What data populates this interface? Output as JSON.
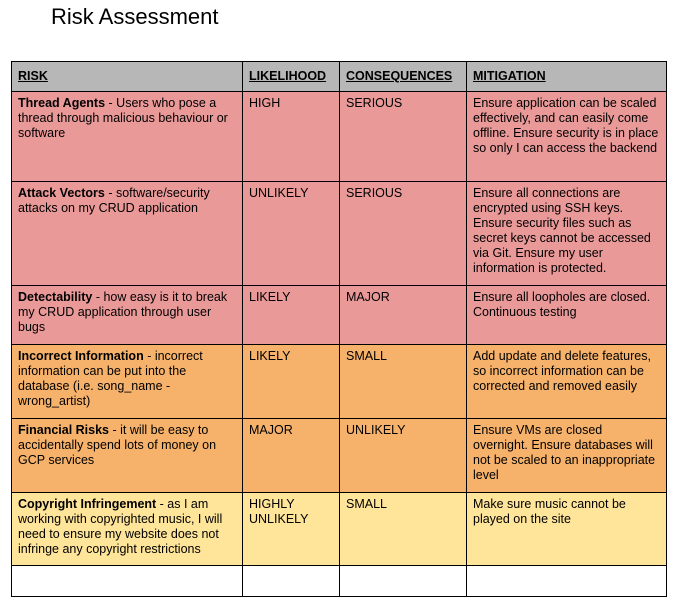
{
  "title": "Risk Assessment",
  "headers": [
    "RISK",
    "LIKELIHOOD",
    "CONSEQUENCES",
    "MITIGATION"
  ],
  "rows": [
    {
      "name": "Thread Agents",
      "desc": " - Users who pose a thread through malicious behaviour or software",
      "likelihood": "HIGH",
      "consequences": "SERIOUS",
      "mitigation": "Ensure application can be scaled effectively, and can easily come offline. Ensure security is in place so only I can access the backend",
      "color": "#ea9999"
    },
    {
      "name": "Attack Vectors",
      "desc": " - software/security attacks on my CRUD application",
      "likelihood": "UNLIKELY",
      "consequences": "SERIOUS",
      "mitigation": "Ensure all connections are encrypted using SSH keys. Ensure security files such as secret keys cannot be accessed via Git. Ensure my user information is protected.",
      "color": "#ea9999"
    },
    {
      "name": "Detectability",
      "desc": " - how easy is it to break my CRUD application through user bugs",
      "likelihood": "LIKELY",
      "consequences": "MAJOR",
      "mitigation": "Ensure all loopholes are closed. Continuous testing",
      "color": "#ea9999"
    },
    {
      "name": "Incorrect Information",
      "desc": " - incorrect information can be put into the database (i.e. song_name - wrong_artist)",
      "likelihood": "LIKELY",
      "consequences": "SMALL",
      "mitigation": "Add update and delete features, so incorrect information can be corrected and removed easily",
      "color": "#f6b26b"
    },
    {
      "name": "Financial Risks",
      "desc": " - it will be easy to accidentally spend lots of money on GCP services",
      "likelihood": "MAJOR",
      "consequences": "UNLIKELY",
      "mitigation": "Ensure VMs are closed overnight. Ensure databases will not be scaled to an inappropriate level",
      "color": "#f6b26b"
    },
    {
      "name": "Copyright Infringement",
      "desc": " - as I am working with copyrighted music, I will need to ensure my website does not infringe any copyright restrictions",
      "likelihood": "HIGHLY UNLIKELY",
      "consequences": "SMALL",
      "mitigation": "Make sure music cannot be played on the site",
      "color": "#ffe599"
    }
  ]
}
